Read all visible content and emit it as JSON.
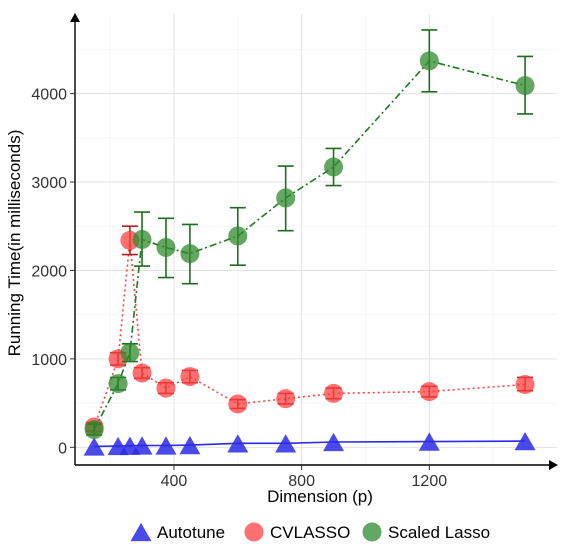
{
  "chart_data": {
    "type": "line",
    "xlabel": "Dimension (p)",
    "ylabel": "Running Time(in milliseconds)",
    "xlim": [
      90,
      1600
    ],
    "ylim": [
      -200,
      4900
    ],
    "x_ticks": [
      400,
      800,
      1200
    ],
    "y_ticks": [
      0,
      1000,
      2000,
      3000,
      4000
    ],
    "grid": true,
    "legend_position": "bottom",
    "series": [
      {
        "name": "Autotune",
        "color": "#2a2ae8",
        "marker": "triangle",
        "line_style": "solid",
        "points": [
          {
            "x": 150,
            "y": 10
          },
          {
            "x": 225,
            "y": 15
          },
          {
            "x": 262,
            "y": 18
          },
          {
            "x": 300,
            "y": 20
          },
          {
            "x": 375,
            "y": 20
          },
          {
            "x": 450,
            "y": 25
          },
          {
            "x": 600,
            "y": 45
          },
          {
            "x": 750,
            "y": 45
          },
          {
            "x": 900,
            "y": 60
          },
          {
            "x": 1200,
            "y": 65
          },
          {
            "x": 1500,
            "y": 70
          }
        ]
      },
      {
        "name": "CVLASSO",
        "color": "#ff4040",
        "marker": "circle",
        "line_style": "dotted",
        "points": [
          {
            "x": 150,
            "y": 230,
            "err_low": 180,
            "err_high": 280
          },
          {
            "x": 225,
            "y": 1000,
            "err_low": 930,
            "err_high": 1070
          },
          {
            "x": 262,
            "y": 2340,
            "err_low": 2180,
            "err_high": 2500
          },
          {
            "x": 300,
            "y": 840,
            "err_low": 780,
            "err_high": 900
          },
          {
            "x": 375,
            "y": 670,
            "err_low": 610,
            "err_high": 730
          },
          {
            "x": 450,
            "y": 800,
            "err_low": 730,
            "err_high": 870
          },
          {
            "x": 600,
            "y": 490,
            "err_low": 440,
            "err_high": 540
          },
          {
            "x": 750,
            "y": 550,
            "err_low": 490,
            "err_high": 610
          },
          {
            "x": 900,
            "y": 610,
            "err_low": 550,
            "err_high": 670
          },
          {
            "x": 1200,
            "y": 630,
            "err_low": 570,
            "err_high": 690
          },
          {
            "x": 1500,
            "y": 710,
            "err_low": 640,
            "err_high": 790
          }
        ]
      },
      {
        "name": "Scaled Lasso",
        "color": "#2f8a2f",
        "marker": "circle",
        "line_style": "dashdot",
        "points": [
          {
            "x": 150,
            "y": 200,
            "err_low": 140,
            "err_high": 260
          },
          {
            "x": 225,
            "y": 720,
            "err_low": 650,
            "err_high": 790
          },
          {
            "x": 262,
            "y": 1070,
            "err_low": 970,
            "err_high": 1170
          },
          {
            "x": 300,
            "y": 2350,
            "err_low": 2050,
            "err_high": 2660
          },
          {
            "x": 375,
            "y": 2260,
            "err_low": 1920,
            "err_high": 2590
          },
          {
            "x": 450,
            "y": 2190,
            "err_low": 1850,
            "err_high": 2520
          },
          {
            "x": 600,
            "y": 2390,
            "err_low": 2060,
            "err_high": 2710
          },
          {
            "x": 750,
            "y": 2820,
            "err_low": 2450,
            "err_high": 3180
          },
          {
            "x": 900,
            "y": 3170,
            "err_low": 2960,
            "err_high": 3380
          },
          {
            "x": 1200,
            "y": 4370,
            "err_low": 4020,
            "err_high": 4720
          },
          {
            "x": 1500,
            "y": 4090,
            "err_low": 3770,
            "err_high": 4420
          }
        ]
      }
    ]
  }
}
